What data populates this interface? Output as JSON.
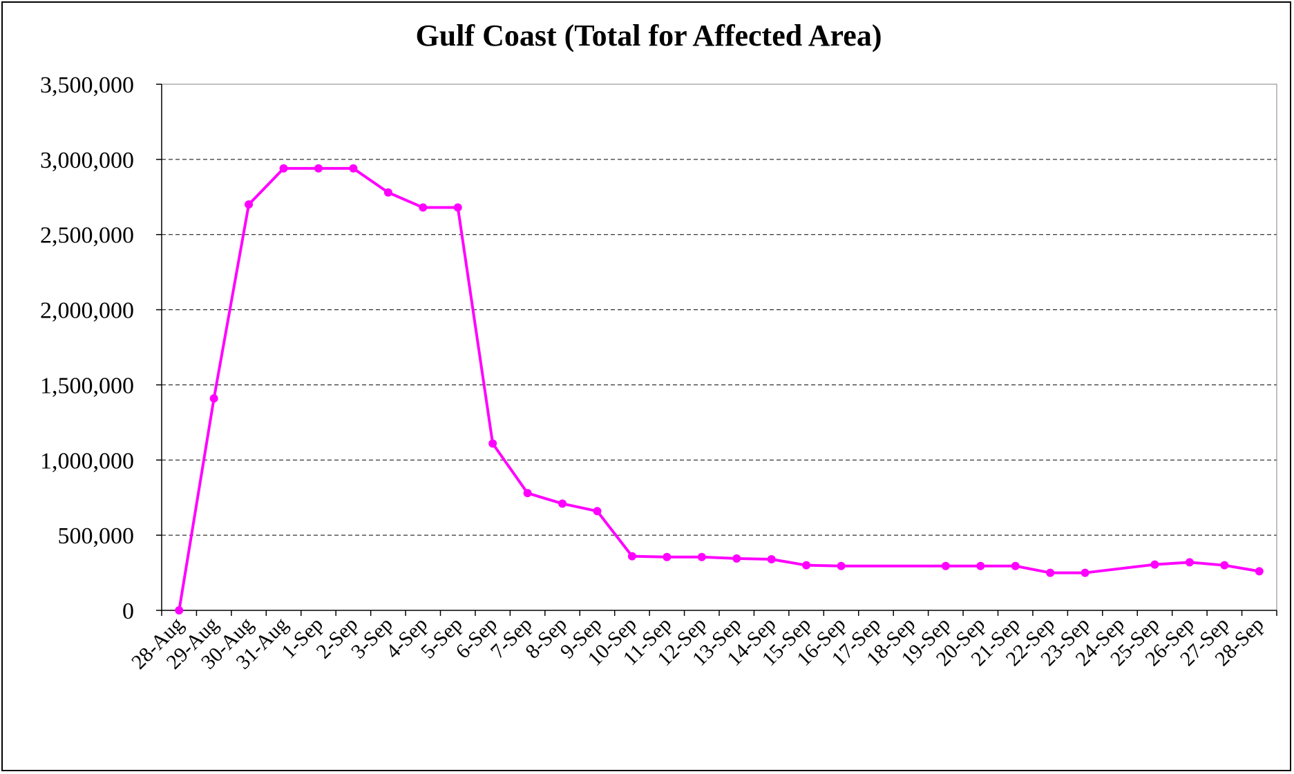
{
  "chart_data": {
    "type": "line",
    "title": "Gulf Coast (Total for Affected Area)",
    "xlabel": "",
    "ylabel": "",
    "ylim": [
      0,
      3500000
    ],
    "y_ticks": [
      0,
      500000,
      1000000,
      1500000,
      2000000,
      2500000,
      3000000,
      3500000
    ],
    "y_tick_labels": [
      "0",
      "500,000",
      "1,000,000",
      "1,500,000",
      "2,000,000",
      "2,500,000",
      "3,000,000",
      "3,500,000"
    ],
    "grid": "horizontal dashed",
    "legend": "none",
    "line_color": "#FF00FF",
    "categories": [
      "28-Aug",
      "29-Aug",
      "30-Aug",
      "31-Aug",
      "1-Sep",
      "2-Sep",
      "3-Sep",
      "4-Sep",
      "5-Sep",
      "6-Sep",
      "7-Sep",
      "8-Sep",
      "9-Sep",
      "10-Sep",
      "11-Sep",
      "12-Sep",
      "13-Sep",
      "14-Sep",
      "15-Sep",
      "16-Sep",
      "17-Sep",
      "18-Sep",
      "19-Sep",
      "20-Sep",
      "21-Sep",
      "22-Sep",
      "23-Sep",
      "24-Sep",
      "25-Sep",
      "26-Sep",
      "27-Sep",
      "28-Sep"
    ],
    "values": [
      0,
      1410000,
      2700000,
      2940000,
      2940000,
      2940000,
      2780000,
      2680000,
      2680000,
      1110000,
      780000,
      710000,
      660000,
      360000,
      355000,
      355000,
      345000,
      340000,
      300000,
      295000,
      null,
      null,
      295000,
      295000,
      295000,
      250000,
      250000,
      null,
      305000,
      320000,
      300000,
      260000
    ]
  }
}
